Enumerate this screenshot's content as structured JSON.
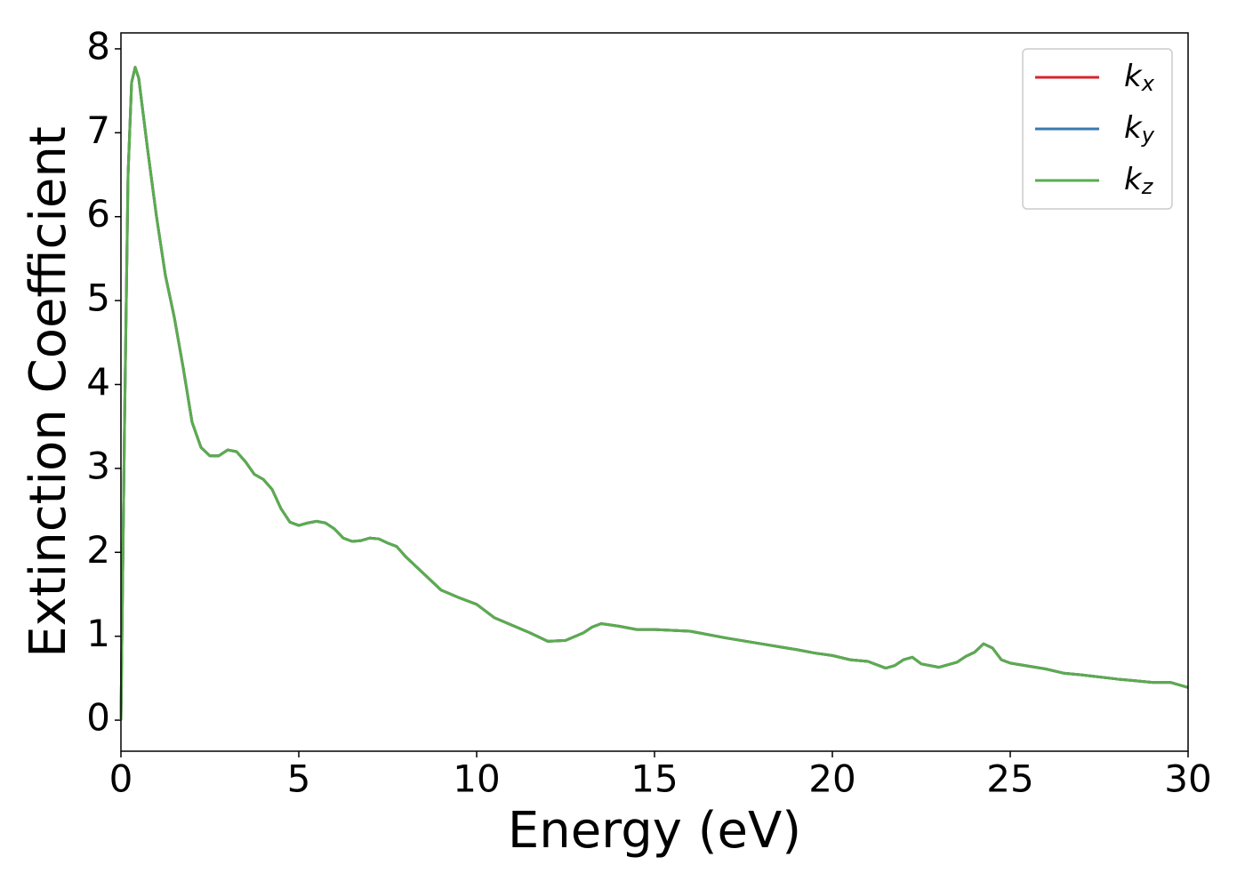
{
  "chart_data": {
    "type": "line",
    "xlabel": "Energy (eV)",
    "ylabel": "Extinction Coefficient",
    "x": [
      0,
      0.1,
      0.2,
      0.3,
      0.4,
      0.5,
      0.75,
      1.0,
      1.25,
      1.5,
      1.75,
      2.0,
      2.25,
      2.5,
      2.75,
      3.0,
      3.25,
      3.5,
      3.75,
      4.0,
      4.25,
      4.5,
      4.75,
      5.0,
      5.25,
      5.5,
      5.75,
      6.0,
      6.25,
      6.5,
      6.75,
      7.0,
      7.25,
      7.5,
      7.75,
      8.0,
      8.5,
      9.0,
      9.5,
      10,
      10.5,
      11,
      11.5,
      12,
      12.5,
      13,
      13.25,
      13.5,
      14,
      14.5,
      15,
      16,
      17,
      18,
      19,
      19.5,
      20,
      20.5,
      21,
      21.5,
      21.75,
      22,
      22.25,
      22.5,
      23,
      23.5,
      23.75,
      24,
      24.25,
      24.5,
      24.75,
      25,
      26,
      26.5,
      27,
      28,
      29,
      29.5,
      30
    ],
    "series": [
      {
        "name": "kx",
        "color": "#d62728",
        "values": [
          0,
          3.5,
          6.5,
          7.6,
          7.78,
          7.65,
          6.8,
          6.0,
          5.3,
          4.8,
          4.2,
          3.55,
          3.25,
          3.15,
          3.15,
          3.22,
          3.2,
          3.08,
          2.93,
          2.87,
          2.75,
          2.52,
          2.36,
          2.32,
          2.35,
          2.37,
          2.35,
          2.28,
          2.17,
          2.13,
          2.14,
          2.17,
          2.16,
          2.11,
          2.07,
          1.95,
          1.75,
          1.55,
          1.46,
          1.38,
          1.22,
          1.13,
          1.04,
          0.94,
          0.95,
          1.04,
          1.11,
          1.15,
          1.12,
          1.08,
          1.08,
          1.06,
          0.98,
          0.91,
          0.84,
          0.8,
          0.77,
          0.72,
          0.7,
          0.62,
          0.65,
          0.72,
          0.75,
          0.67,
          0.63,
          0.69,
          0.76,
          0.81,
          0.91,
          0.86,
          0.72,
          0.68,
          0.61,
          0.56,
          0.54,
          0.49,
          0.45,
          0.45,
          0.39
        ]
      },
      {
        "name": "ky",
        "color": "#3b78b0",
        "values": [
          0,
          3.5,
          6.5,
          7.6,
          7.78,
          7.65,
          6.8,
          6.0,
          5.3,
          4.8,
          4.2,
          3.55,
          3.25,
          3.15,
          3.15,
          3.22,
          3.2,
          3.08,
          2.93,
          2.87,
          2.75,
          2.52,
          2.36,
          2.32,
          2.35,
          2.37,
          2.35,
          2.28,
          2.17,
          2.13,
          2.14,
          2.17,
          2.16,
          2.11,
          2.07,
          1.95,
          1.75,
          1.55,
          1.46,
          1.38,
          1.22,
          1.13,
          1.04,
          0.94,
          0.95,
          1.04,
          1.11,
          1.15,
          1.12,
          1.08,
          1.08,
          1.06,
          0.98,
          0.91,
          0.84,
          0.8,
          0.77,
          0.72,
          0.7,
          0.62,
          0.65,
          0.72,
          0.75,
          0.67,
          0.63,
          0.69,
          0.76,
          0.81,
          0.91,
          0.86,
          0.72,
          0.68,
          0.61,
          0.56,
          0.54,
          0.49,
          0.45,
          0.45,
          0.39
        ]
      },
      {
        "name": "kz",
        "color": "#5aac4e",
        "values": [
          0,
          3.5,
          6.5,
          7.6,
          7.78,
          7.65,
          6.8,
          6.0,
          5.3,
          4.8,
          4.2,
          3.55,
          3.25,
          3.15,
          3.15,
          3.22,
          3.2,
          3.08,
          2.93,
          2.87,
          2.75,
          2.52,
          2.36,
          2.32,
          2.35,
          2.37,
          2.35,
          2.28,
          2.17,
          2.13,
          2.14,
          2.17,
          2.16,
          2.11,
          2.07,
          1.95,
          1.75,
          1.55,
          1.46,
          1.38,
          1.22,
          1.13,
          1.04,
          0.94,
          0.95,
          1.04,
          1.11,
          1.15,
          1.12,
          1.08,
          1.08,
          1.06,
          0.98,
          0.91,
          0.84,
          0.8,
          0.77,
          0.72,
          0.7,
          0.62,
          0.65,
          0.72,
          0.75,
          0.67,
          0.63,
          0.69,
          0.76,
          0.81,
          0.91,
          0.86,
          0.72,
          0.68,
          0.61,
          0.56,
          0.54,
          0.49,
          0.45,
          0.45,
          0.39
        ]
      }
    ],
    "xlim": [
      0,
      30
    ],
    "xticks": [
      0,
      5,
      10,
      15,
      20,
      25,
      30
    ],
    "ylim": [
      -0.37,
      8.19
    ],
    "yticks": [
      0,
      1,
      2,
      3,
      4,
      5,
      6,
      7,
      8
    ],
    "grid": false,
    "legend": "upper right"
  }
}
